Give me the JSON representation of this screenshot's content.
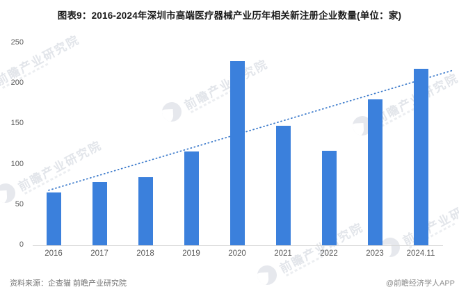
{
  "title": "图表9：2016-2024年深圳市高端医疗器械产业历年相关新注册企业数量(单位：家)",
  "watermark": {
    "text": "前瞻产业研究院"
  },
  "footer": {
    "source": "资料来源：企查猫 前瞻产业研究院",
    "credit": "@前瞻经济学人APP"
  },
  "chart_data": {
    "type": "bar",
    "title": "2016-2024年深圳市高端医疗器械产业历年相关新注册企业数量",
    "unit": "家",
    "categories": [
      "2016",
      "2017",
      "2018",
      "2019",
      "2020",
      "2021",
      "2022",
      "2023",
      "2024.11"
    ],
    "values": [
      65,
      78,
      84,
      116,
      228,
      148,
      117,
      180,
      218
    ],
    "ylim": [
      0,
      250
    ],
    "yticks": [
      0,
      50,
      100,
      150,
      200,
      250
    ],
    "grid": false,
    "legend": false,
    "bar_color": "#3b80dc",
    "trendline": {
      "style": "dotted",
      "color": "#3e7ccc",
      "start_value": 68,
      "end_value": 216
    }
  }
}
